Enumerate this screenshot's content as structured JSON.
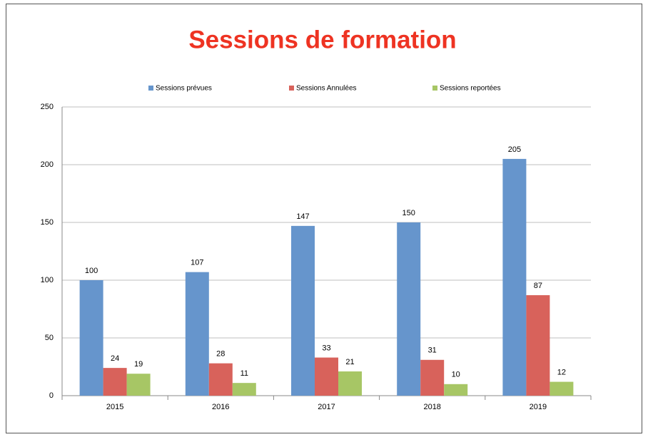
{
  "chart_data": {
    "type": "bar",
    "title": "Sessions de formation",
    "categories": [
      "2015",
      "2016",
      "2017",
      "2018",
      "2019"
    ],
    "series": [
      {
        "name": "Sessions prévues",
        "color": "#6695cc",
        "values": [
          100,
          107,
          147,
          150,
          205
        ]
      },
      {
        "name": "Sessions Annulées",
        "color": "#d8625b",
        "values": [
          24,
          28,
          33,
          31,
          87
        ]
      },
      {
        "name": "Sessions reportées",
        "color": "#a7c665",
        "values": [
          19,
          11,
          21,
          10,
          12
        ]
      }
    ],
    "ylim": [
      0,
      250
    ],
    "yticks": [
      0,
      50,
      100,
      150,
      200,
      250
    ],
    "grid": true,
    "legend": "top"
  }
}
